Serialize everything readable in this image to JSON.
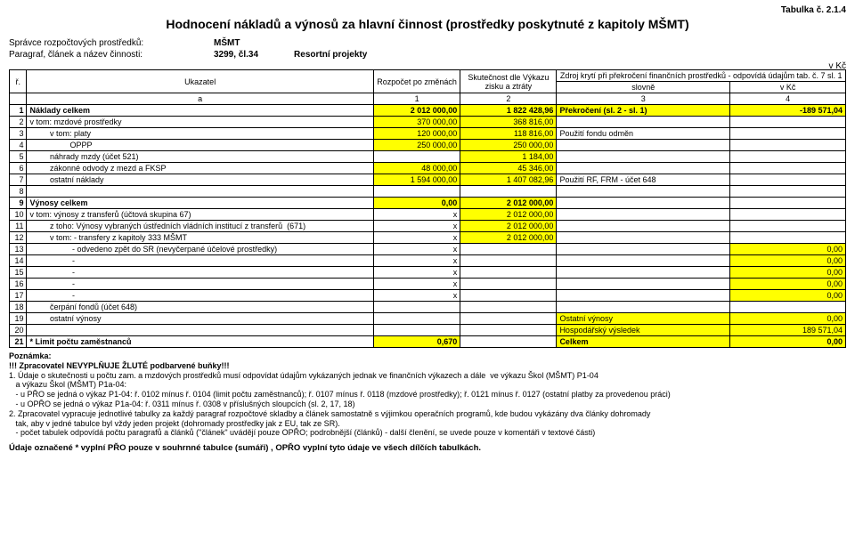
{
  "top_right": "Tabulka č. 2.1.4",
  "title": "Hodnocení nákladů a výnosů za hlavní činnost (prostředky poskytnuté z kapitoly MŠMT)",
  "meta": {
    "l1": "Správce rozpočtových prostředků:",
    "v1": "MŠMT",
    "l2": "Paragraf, článek a název činnosti:",
    "v2a": "3299, čl.34",
    "v2b": "Resortní projekty"
  },
  "vkc": "v Kč",
  "head": {
    "r": "ř.",
    "uk": "Ukazatel",
    "rozp": "Rozpočet po změnách",
    "skut": "Skutečnost dle Výkazu zisku a ztráty",
    "zdroj": "Zdroj krytí při překročení finančních prostředků - odpovídá údajům tab. č. 7 sl. 1",
    "slov": "slovně",
    "vkc": "v Kč",
    "a": "a",
    "n1": "1",
    "n2": "2",
    "n3": "3",
    "n4": "4"
  },
  "rows": [
    {
      "n": "1",
      "a": "Náklady celkem",
      "c2": "2 012 000,00",
      "c3": "1 822 428,96",
      "c4": "Překročení (sl. 2 - sl. 1)",
      "c5": "-189 571,04",
      "bold": true,
      "y2": true,
      "y3": true,
      "y4": true,
      "y5": true
    },
    {
      "n": "2",
      "a": "v tom: mzdové prostředky",
      "c2": "370 000,00",
      "c3": "368 816,00",
      "c4": "",
      "c5": "",
      "y2": true,
      "y3": true
    },
    {
      "n": "3",
      "a": "         v tom: platy",
      "c2": "120 000,00",
      "c3": "118 816,00",
      "c4": "Použití fondu odměn",
      "c5": "",
      "y2": true,
      "y3": true
    },
    {
      "n": "4",
      "a": "                  OPPP",
      "c2": "250 000,00",
      "c3": "250 000,00",
      "c4": "",
      "c5": "",
      "y2": true,
      "y3": true
    },
    {
      "n": "5",
      "a": "         náhrady mzdy (účet 521)",
      "c2": "",
      "c3": "1 184,00",
      "c4": "",
      "c5": "",
      "y3": true
    },
    {
      "n": "6",
      "a": "         zákonné odvody z mezd a FKSP",
      "c2": "48 000,00",
      "c3": "45 346,00",
      "c4": "",
      "c5": "",
      "y2": true,
      "y3": true
    },
    {
      "n": "7",
      "a": "         ostatní náklady",
      "c2": "1 594 000,00",
      "c3": "1 407 082,96",
      "c4": "Použití RF, FRM - účet 648",
      "c5": "",
      "y2": true,
      "y3": true
    },
    {
      "n": "8",
      "a": "",
      "c2": "",
      "c3": "",
      "c4": "",
      "c5": ""
    },
    {
      "n": "9",
      "a": "Výnosy celkem",
      "c2": "0,00",
      "c3": "2 012 000,00",
      "c4": "",
      "c5": "",
      "bold": true,
      "y2": true,
      "y3": true
    },
    {
      "n": "10",
      "a": "v tom: výnosy z transferů (účtová skupina 67)",
      "c2": "x",
      "c3": "2 012 000,00",
      "c4": "",
      "c5": "",
      "y3": true
    },
    {
      "n": "11",
      "a": "         z toho: Výnosy vybraných ústředních vládních institucí z transferů  (671)",
      "c2": "x",
      "c3": "2 012 000,00",
      "c4": "",
      "c5": "",
      "y3": true
    },
    {
      "n": "12",
      "a": "         v tom: - transfery z kapitoly 333 MŠMT",
      "c2": "x",
      "c3": "2 012 000,00",
      "c4": "",
      "c5": "",
      "y3": true
    },
    {
      "n": "13",
      "a": "                   - odvedeno zpět do SR (nevyčerpané účelové prostředky)",
      "c2": "x",
      "c3": "",
      "c4": "",
      "c5": "0,00",
      "y5": true
    },
    {
      "n": "14",
      "a": "                   -",
      "c2": "x",
      "c3": "",
      "c4": "",
      "c5": "0,00",
      "y5": true
    },
    {
      "n": "15",
      "a": "                   -",
      "c2": "x",
      "c3": "",
      "c4": "",
      "c5": "0,00",
      "y5": true
    },
    {
      "n": "16",
      "a": "                   -",
      "c2": "x",
      "c3": "",
      "c4": "",
      "c5": "0,00",
      "y5": true
    },
    {
      "n": "17",
      "a": "                   -",
      "c2": "x",
      "c3": "",
      "c4": "",
      "c5": "0,00",
      "y5": true
    },
    {
      "n": "18",
      "a": "         čerpání fondů (účet 648)",
      "c2": "",
      "c3": "",
      "c4": "",
      "c5": ""
    },
    {
      "n": "19",
      "a": "         ostatní výnosy",
      "c2": "",
      "c3": "",
      "c4": "Ostatní výnosy",
      "c5": "0,00",
      "y4": true,
      "y5": true
    },
    {
      "n": "20",
      "a": "",
      "c2": "",
      "c3": "",
      "c4": "Hospodářský výsledek",
      "c5": "189 571,04",
      "y4": true,
      "y5": true
    },
    {
      "n": "21",
      "a": "* Limit počtu zaměstnanců",
      "c2": "0,670",
      "c3": "",
      "c4": "Celkem",
      "c5": "0,00",
      "bold": true,
      "y2": true,
      "y4": true,
      "y5": true
    }
  ],
  "poznamka": "Poznámka:",
  "notes": [
    "!!! Zpracovatel NEVYPLŇUJE ŽLUTÉ podbarvené buňky!!!",
    "1. Údaje o skutečnosti u počtu zam. a mzdových prostředků musí odpovídat údajům vykázaných jednak ve finančních výkazech a dále  ve výkazu Škol (MŠMT) P1-04",
    "   a výkazu Škol (MŠMT) P1a-04:",
    "   - u PŘO se jedná o výkaz P1-04: ř. 0102 mínus ř. 0104 (limit počtu zaměstnanců); ř. 0107 mínus ř. 0118 (mzdové prostředky); ř. 0121 mínus ř. 0127 (ostatní platby za provedenou práci)",
    "   - u OPŘO se jedná o výkaz P1a-04: ř. 0311 mínus ř. 0308 v příslušných sloupcích (sl. 2, 17, 18)",
    "2. Zpracovatel vypracuje jednotlivé tabulky za každý paragraf rozpočtové skladby a článek samostatně s výjimkou operačních programů, kde budou vykázány dva články dohromady",
    "   tak, aby v jedné tabulce byl vždy jeden projekt (dohromady prostředky jak z EU, tak ze SR).",
    "   - počet tabulek odpovídá počtu paragrafů a článků (\"článek\" uvádějí pouze OPŘO; podrobnější (článků) - další členění, se uvede pouze v komentáři v textové části)"
  ],
  "lastline": "Údaje označené * vyplní PŘO pouze v souhrnné tabulce (sumáři) , OPŘO vyplní tyto údaje ve všech dílčích tabulkách."
}
